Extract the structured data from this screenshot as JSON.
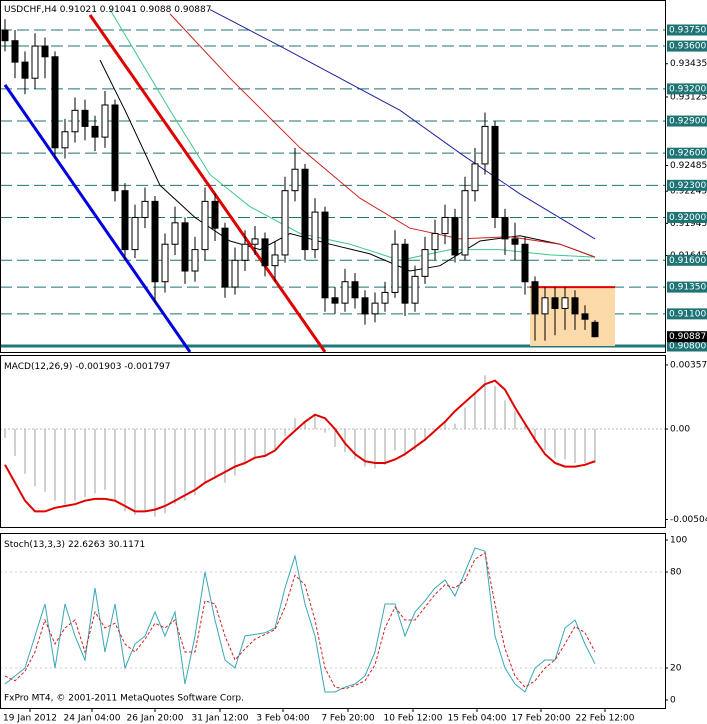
{
  "chart_data": [
    {
      "type": "candlestick",
      "title": "USDCHF,H4",
      "xlim": [
        -0.5,
        66
      ],
      "xticks": [
        {
          "value": 2.5,
          "label": "19 Jan 2012"
        },
        {
          "value": 8.7,
          "label": "24 Jan 04:00"
        },
        {
          "value": 15,
          "label": "26 Jan 20:00"
        },
        {
          "value": 21.5,
          "label": "31 Jan 12:00"
        },
        {
          "value": 27.8,
          "label": "3 Feb 04:00"
        },
        {
          "value": 34.3,
          "label": "7 Feb 20:00"
        },
        {
          "value": 40.8,
          "label": "10 Feb 12:00"
        },
        {
          "value": 47.2,
          "label": "15 Feb 04:00"
        },
        {
          "value": 53.6,
          "label": "17 Feb 20:00"
        },
        {
          "value": 60,
          "label": "22 Feb 12:00"
        }
      ],
      "ylim": [
        0.90744,
        0.9403
      ],
      "yticks": [
        0.93435,
        0.93125,
        0.92485,
        0.92245,
        0.91945,
        0.91645
      ],
      "levels": [
        {
          "value": 0.9375,
          "label": "0.93750"
        },
        {
          "value": 0.936,
          "label": "0.93600"
        },
        {
          "value": 0.932,
          "label": "0.93200"
        },
        {
          "value": 0.929,
          "label": "0.92900"
        },
        {
          "value": 0.926,
          "label": "0.92600"
        },
        {
          "value": 0.923,
          "label": "0.92300"
        },
        {
          "value": 0.92,
          "label": "0.92000"
        },
        {
          "value": 0.916,
          "label": "0.91600"
        },
        {
          "value": 0.9135,
          "label": "0.91350"
        },
        {
          "value": 0.911,
          "label": "0.91100"
        },
        {
          "value": 0.908,
          "label": "0.90800"
        }
      ],
      "level_color": "#1e7474",
      "support_color": "#1e7a7a",
      "open": [
        0.9375,
        0.9365,
        0.9345,
        0.933,
        0.936,
        0.935,
        0.9265,
        0.928,
        0.93,
        0.9285,
        0.9275,
        0.9305,
        0.9225,
        0.917,
        0.92,
        0.9215,
        0.914,
        0.9175,
        0.9195,
        0.915,
        0.917,
        0.9215,
        0.919,
        0.9135,
        0.916,
        0.9175,
        0.918,
        0.9155,
        0.9165,
        0.9225,
        0.9245,
        0.917,
        0.9205,
        0.9125,
        0.912,
        0.914,
        0.9125,
        0.911,
        0.912,
        0.913,
        0.9175,
        0.912,
        0.9145,
        0.917,
        0.9185,
        0.92,
        0.9165,
        0.9225,
        0.925,
        0.9285,
        0.92,
        0.918,
        0.9175,
        0.914,
        0.911,
        0.9125,
        0.9115,
        0.9125,
        0.911,
        0.91021
      ],
      "high": [
        0.9385,
        0.9375,
        0.9355,
        0.9372,
        0.9368,
        0.9355,
        0.9292,
        0.9312,
        0.931,
        0.9295,
        0.9318,
        0.931,
        0.9232,
        0.9212,
        0.9228,
        0.922,
        0.9185,
        0.921,
        0.92,
        0.9182,
        0.9228,
        0.9222,
        0.9195,
        0.9172,
        0.9188,
        0.9192,
        0.9186,
        0.9178,
        0.9238,
        0.9265,
        0.925,
        0.9218,
        0.921,
        0.9135,
        0.9152,
        0.9148,
        0.9132,
        0.913,
        0.914,
        0.9188,
        0.918,
        0.9155,
        0.9182,
        0.9198,
        0.9212,
        0.9208,
        0.9238,
        0.9265,
        0.9298,
        0.929,
        0.9208,
        0.9195,
        0.9182,
        0.9145,
        0.9135,
        0.9135,
        0.9135,
        0.9132,
        0.9118,
        0.91041
      ],
      "low": [
        0.9355,
        0.933,
        0.9315,
        0.932,
        0.933,
        0.9255,
        0.9255,
        0.927,
        0.9272,
        0.9262,
        0.9265,
        0.9215,
        0.916,
        0.9162,
        0.919,
        0.912,
        0.913,
        0.9165,
        0.9138,
        0.914,
        0.916,
        0.9178,
        0.9125,
        0.9128,
        0.915,
        0.9165,
        0.9145,
        0.914,
        0.9158,
        0.9215,
        0.916,
        0.9162,
        0.9112,
        0.911,
        0.9112,
        0.9115,
        0.91,
        0.9102,
        0.9112,
        0.9125,
        0.9108,
        0.9112,
        0.9138,
        0.916,
        0.9175,
        0.9158,
        0.916,
        0.9215,
        0.924,
        0.919,
        0.9165,
        0.916,
        0.9128,
        0.9085,
        0.9085,
        0.909,
        0.9095,
        0.9095,
        0.9095,
        0.9088
      ],
      "close": [
        0.9365,
        0.9345,
        0.933,
        0.936,
        0.935,
        0.9265,
        0.928,
        0.93,
        0.9285,
        0.9275,
        0.9305,
        0.9225,
        0.917,
        0.92,
        0.9215,
        0.914,
        0.9175,
        0.9195,
        0.915,
        0.917,
        0.9215,
        0.919,
        0.9135,
        0.916,
        0.9175,
        0.918,
        0.9155,
        0.9165,
        0.9225,
        0.9245,
        0.917,
        0.9205,
        0.9125,
        0.912,
        0.914,
        0.9125,
        0.911,
        0.912,
        0.913,
        0.9175,
        0.912,
        0.9145,
        0.917,
        0.9185,
        0.92,
        0.9165,
        0.9225,
        0.925,
        0.9285,
        0.92,
        0.918,
        0.9175,
        0.914,
        0.911,
        0.9125,
        0.9115,
        0.9125,
        0.911,
        0.9105,
        0.90887
      ],
      "series": [
        {
          "color": "#000000",
          "x": [
            9.5,
            12,
            15.5,
            19,
            22.5,
            25.5,
            28.5,
            32.5,
            36.5,
            40.5,
            43.5,
            47.5,
            51.5,
            55.5,
            59
          ],
          "values": [
            0.9347,
            0.93,
            0.923,
            0.92,
            0.9178,
            0.917,
            0.9185,
            0.9175,
            0.9166,
            0.915,
            0.9155,
            0.9178,
            0.9183,
            0.9175,
            0.9163
          ]
        },
        {
          "color": "#3cc88c",
          "x": [
            10.5,
            16.5,
            20.5,
            24.5,
            29.5,
            34.5,
            39.5,
            44.5,
            49.5,
            54.5,
            59
          ],
          "values": [
            0.9394,
            0.93,
            0.924,
            0.921,
            0.9185,
            0.9175,
            0.916,
            0.917,
            0.917,
            0.9165,
            0.9163
          ]
        },
        {
          "color": "#d02020",
          "x": [
            16.5,
            22.5,
            29.5,
            35.5,
            40.5,
            45.5,
            50.5,
            55.5,
            59
          ],
          "values": [
            0.939,
            0.933,
            0.9265,
            0.9218,
            0.919,
            0.918,
            0.9182,
            0.9175,
            0.9163
          ]
        },
        {
          "color": "#2020a0",
          "x": [
            20.5,
            27.5,
            33.5,
            39.5,
            45.5,
            51.5,
            56.5,
            59
          ],
          "values": [
            0.9394,
            0.936,
            0.933,
            0.93,
            0.926,
            0.9222,
            0.9194,
            0.918
          ]
        }
      ],
      "trendlines": [
        {
          "color": "#0000e0",
          "x": [
            0,
            18.5
          ],
          "values": [
            0.93237,
            0.90744
          ]
        },
        {
          "color": "#e00000",
          "x": [
            8.5,
            32
          ],
          "values": [
            0.9389,
            0.90744
          ]
        }
      ],
      "box": {
        "x": [
          52.5,
          61
        ],
        "y": [
          0.908,
          0.9135
        ],
        "color": "#fcd9a8",
        "edge": "#e00000"
      },
      "current": 0.90887
    },
    {
      "type": "bar",
      "title": "MACD(12,26,9)",
      "xlim": [
        -0.5,
        66
      ],
      "ylim": [
        -0.00547,
        0.00413
      ],
      "yticks": [
        0.003574,
        {
          "value": 0,
          "label": "0.00"
        },
        -0.005047
      ],
      "color": "#a0a0a0",
      "values": [
        -0.0005,
        -0.0015,
        -0.0025,
        -0.0032,
        -0.0035,
        -0.004,
        -0.0042,
        -0.004,
        -0.0038,
        -0.0036,
        -0.0034,
        -0.004,
        -0.0046,
        -0.0048,
        -0.0046,
        -0.0049,
        -0.0047,
        -0.0042,
        -0.004,
        -0.0037,
        -0.003,
        -0.0028,
        -0.003,
        -0.0026,
        -0.002,
        -0.0016,
        -0.0015,
        -0.0012,
        -0.0004,
        0.0006,
        0.0004,
        0.0008,
        -0.0002,
        -0.001,
        -0.0013,
        -0.0017,
        -0.0021,
        -0.0022,
        -0.002,
        -0.0012,
        -0.0015,
        -0.0012,
        -0.0006,
        -0.0001,
        0.0004,
        0.0003,
        0.0012,
        0.002,
        0.003,
        0.0024,
        0.0016,
        0.001,
        0.0002,
        -0.0008,
        -0.0012,
        -0.0016,
        -0.0017,
        -0.0019,
        -0.0019,
        -0.001903
      ],
      "series": [
        {
          "color": "#e00000",
          "values": [
            -0.002,
            -0.003,
            -0.004,
            -0.0046,
            -0.0046,
            -0.0044,
            -0.0043,
            -0.0042,
            -0.004,
            -0.0039,
            -0.0039,
            -0.004,
            -0.0043,
            -0.0046,
            -0.0046,
            -0.0045,
            -0.0043,
            -0.004,
            -0.0037,
            -0.0034,
            -0.003,
            -0.0027,
            -0.0024,
            -0.0021,
            -0.0019,
            -0.0016,
            -0.0015,
            -0.0012,
            -0.0006,
            -0.0001,
            0.0004,
            0.0008,
            0.0006,
            0.0,
            -0.0008,
            -0.0014,
            -0.0018,
            -0.0019,
            -0.0019,
            -0.0017,
            -0.0014,
            -0.001,
            -0.0006,
            -0.0001,
            0.0004,
            0.001,
            0.0015,
            0.002,
            0.0025,
            0.0027,
            0.0022,
            0.0012,
            0.0003,
            -0.0006,
            -0.0014,
            -0.0019,
            -0.0021,
            -0.0021,
            -0.002,
            -0.001797
          ]
        }
      ]
    },
    {
      "type": "line",
      "title": "Stoch(13,3,3)",
      "xlim": [
        -0.5,
        66
      ],
      "ylim": [
        -5,
        104.4
      ],
      "yticks": [
        100,
        80,
        20,
        0
      ],
      "series": [
        {
          "color": "#38a8b8",
          "values": [
            10,
            15,
            20,
            40,
            60,
            20,
            60,
            40,
            25,
            70,
            30,
            60,
            20,
            35,
            40,
            55,
            40,
            55,
            10,
            40,
            80,
            50,
            25,
            20,
            40,
            41,
            42,
            45,
            70,
            90,
            60,
            40,
            5,
            5,
            8,
            10,
            15,
            30,
            60,
            60,
            40,
            55,
            62,
            70,
            75,
            65,
            80,
            95,
            93,
            40,
            20,
            10,
            5,
            20,
            25,
            25,
            45,
            50,
            35,
            22.6263
          ]
        },
        {
          "color": "#d02020",
          "dash": true,
          "values": [
            15,
            12,
            18,
            30,
            50,
            35,
            45,
            50,
            30,
            55,
            45,
            48,
            35,
            30,
            38,
            48,
            45,
            50,
            30,
            30,
            62,
            60,
            40,
            25,
            32,
            38,
            41,
            44,
            58,
            78,
            72,
            50,
            20,
            8,
            7,
            9,
            12,
            22,
            45,
            58,
            50,
            50,
            58,
            66,
            72,
            70,
            75,
            88,
            92,
            60,
            32,
            15,
            8,
            12,
            20,
            25,
            35,
            46,
            42,
            30.1171
          ]
        }
      ],
      "watermark": "FxPro MT4, © 2001-2011 MetaQuotes Software Corp."
    }
  ]
}
